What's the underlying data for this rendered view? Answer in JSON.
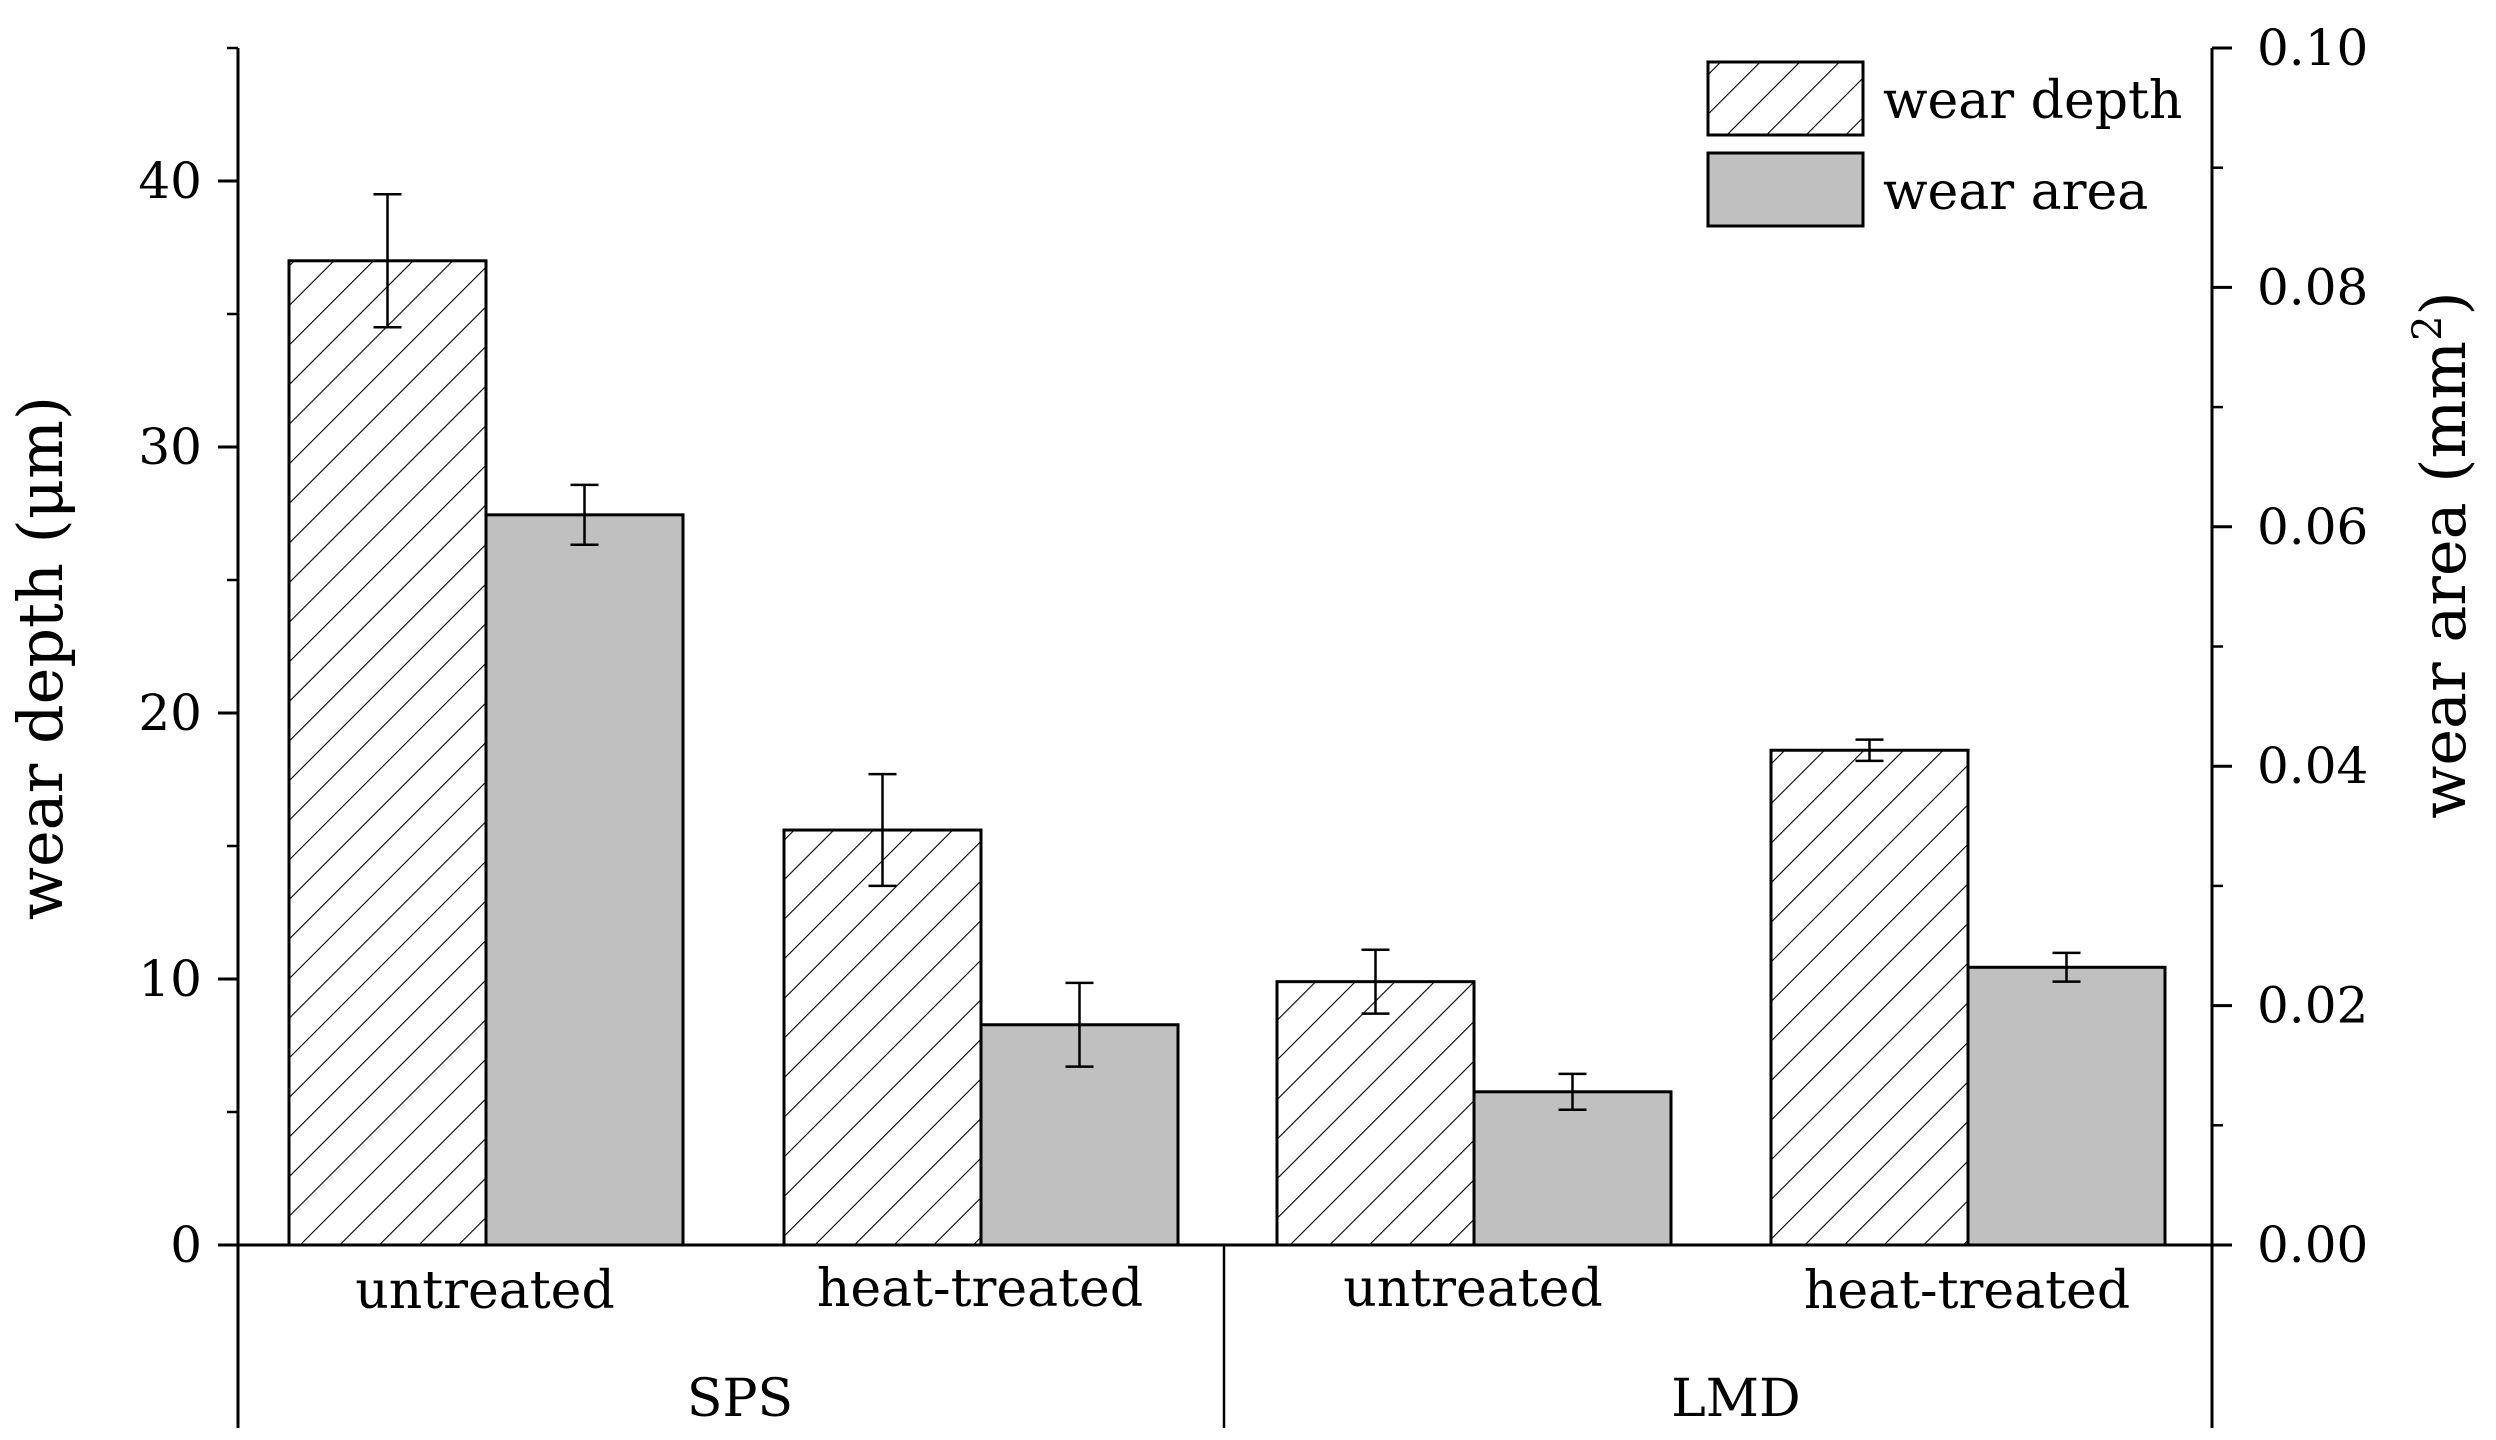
{
  "chart_data": {
    "type": "bar",
    "title": "",
    "groups": [
      {
        "label": "SPS",
        "categories": [
          "untreated",
          "heat-treated"
        ]
      },
      {
        "label": "LMD",
        "categories": [
          "untreated",
          "heat-treated"
        ]
      }
    ],
    "categories": [
      "untreated",
      "heat-treated",
      "untreated",
      "heat-treated"
    ],
    "series": [
      {
        "name": "wear depth",
        "axis": "left",
        "pattern": "hatched",
        "values": [
          37.0,
          15.6,
          9.9,
          18.6
        ],
        "errors": [
          2.5,
          2.1,
          1.2,
          0.4
        ]
      },
      {
        "name": "wear area",
        "axis": "right",
        "pattern": "solid",
        "color": "#c0c0c0",
        "values": [
          0.061,
          0.0184,
          0.0128,
          0.0232
        ],
        "errors": [
          0.0025,
          0.0035,
          0.0015,
          0.0012
        ]
      }
    ],
    "ylabel_left": "wear depth (μm)",
    "ylabel_right_base": "wear area (mm",
    "ylabel_right_sup": "2",
    "ylabel_right_close": ")",
    "ylim_left": [
      0,
      45
    ],
    "yticks_left": [
      0,
      10,
      20,
      30,
      40
    ],
    "yticks_left_labels": [
      "0",
      "10",
      "20",
      "30",
      "40"
    ],
    "ylim_right": [
      0,
      0.1
    ],
    "yticks_right": [
      0,
      0.02,
      0.04,
      0.06,
      0.08,
      0.1
    ],
    "yticks_right_labels": [
      "0.00",
      "0.02",
      "0.04",
      "0.06",
      "0.08",
      "0.10"
    ],
    "legend_position": "top-right",
    "grid": false
  }
}
